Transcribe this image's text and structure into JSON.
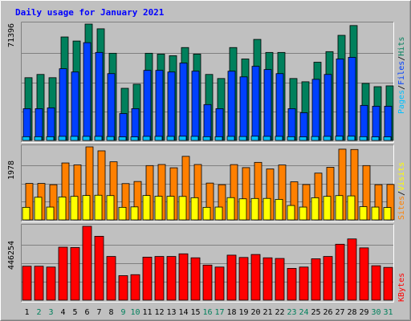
{
  "title": "Daily usage for January 2021",
  "colors": {
    "hits": "#00805c",
    "files": "#0040ff",
    "pages": "#00c0ff",
    "visits": "#ff8000",
    "sites": "#ffff00",
    "kbytes": "#ff0000",
    "weekday_label": "#000000",
    "weekend_label": "#00805c",
    "title": "#0000ff",
    "slash": "#000000"
  },
  "chart_data": [
    {
      "type": "bar",
      "categories": [
        "1",
        "2",
        "3",
        "4",
        "5",
        "6",
        "7",
        "8",
        "9",
        "10",
        "11",
        "12",
        "13",
        "14",
        "15",
        "16",
        "17",
        "18",
        "19",
        "20",
        "21",
        "22",
        "23",
        "24",
        "25",
        "26",
        "27",
        "28",
        "29",
        "30",
        "31"
      ],
      "weekend_days": [
        "2",
        "3",
        "9",
        "10",
        "16",
        "17",
        "23",
        "24",
        "30",
        "31"
      ],
      "ytick_label": "71396",
      "ylim": [
        0,
        71396
      ],
      "series": [
        {
          "name": "Hits",
          "values": [
            38500,
            40500,
            38500,
            63500,
            61000,
            71396,
            68500,
            53500,
            32000,
            34500,
            53500,
            53000,
            52000,
            57000,
            53000,
            40500,
            38000,
            57000,
            50000,
            62000,
            54000,
            54000,
            38000,
            36000,
            48000,
            54500,
            64500,
            70500,
            35000,
            33000,
            33500
          ]
        },
        {
          "name": "Files",
          "values": [
            19500,
            19500,
            20000,
            44000,
            42000,
            60000,
            54000,
            41000,
            16500,
            19500,
            43000,
            43000,
            42000,
            47500,
            42500,
            22000,
            19500,
            42500,
            39000,
            45500,
            43500,
            41000,
            19500,
            17000,
            37500,
            40500,
            50000,
            51000,
            21500,
            21000,
            21000
          ]
        },
        {
          "name": "Pages",
          "values": [
            2300,
            2300,
            2300,
            2500,
            2500,
            2500,
            2500,
            2400,
            2200,
            2200,
            2500,
            2500,
            2500,
            2600,
            2500,
            2300,
            2300,
            2500,
            2400,
            2600,
            2500,
            2500,
            2300,
            2200,
            2400,
            2500,
            2600,
            2600,
            2300,
            2200,
            2200
          ]
        }
      ],
      "side_labels": [
        "Pages",
        "Files",
        "Hits"
      ],
      "slash": "/"
    },
    {
      "type": "bar",
      "categories": [
        "1",
        "2",
        "3",
        "4",
        "5",
        "6",
        "7",
        "8",
        "9",
        "10",
        "11",
        "12",
        "13",
        "14",
        "15",
        "16",
        "17",
        "18",
        "19",
        "20",
        "21",
        "22",
        "23",
        "24",
        "25",
        "26",
        "27",
        "28",
        "29",
        "30",
        "31"
      ],
      "ytick_label": "1978",
      "ylim": [
        0,
        1978
      ],
      "series": [
        {
          "name": "Visits",
          "values": [
            987,
            987,
            953,
            1542,
            1490,
            1978,
            1870,
            1573,
            983,
            1040,
            1471,
            1500,
            1411,
            1721,
            1500,
            997,
            953,
            1497,
            1415,
            1558,
            1380,
            1487,
            1031,
            957,
            1267,
            1424,
            1915,
            1907,
            1471,
            953,
            960
          ]
        },
        {
          "name": "Sites",
          "values": [
            340,
            613,
            347,
            620,
            637,
            660,
            668,
            658,
            340,
            352,
            660,
            641,
            640,
            635,
            601,
            340,
            347,
            603,
            571,
            580,
            582,
            556,
            390,
            347,
            600,
            637,
            658,
            650,
            358,
            347,
            335
          ]
        }
      ],
      "side_labels": [
        "Sites",
        "Visits"
      ],
      "slash": "/"
    },
    {
      "type": "bar",
      "categories": [
        "1",
        "2",
        "3",
        "4",
        "5",
        "6",
        "7",
        "8",
        "9",
        "10",
        "11",
        "12",
        "13",
        "14",
        "15",
        "16",
        "17",
        "18",
        "19",
        "20",
        "21",
        "22",
        "23",
        "24",
        "25",
        "26",
        "27",
        "28",
        "29",
        "30",
        "31"
      ],
      "ytick_label": "446254",
      "ylim": [
        0,
        446254
      ],
      "series": [
        {
          "name": "KBytes",
          "values": [
            205000,
            205000,
            200000,
            320000,
            318000,
            446254,
            386000,
            264000,
            148000,
            154000,
            260000,
            264000,
            264000,
            280000,
            256000,
            212000,
            200000,
            272000,
            258000,
            276000,
            256000,
            252000,
            192000,
            200000,
            250000,
            264000,
            338000,
            370000,
            316000,
            208000,
            198000
          ]
        }
      ],
      "side_labels": [
        "KBytes"
      ],
      "slash": ""
    }
  ]
}
